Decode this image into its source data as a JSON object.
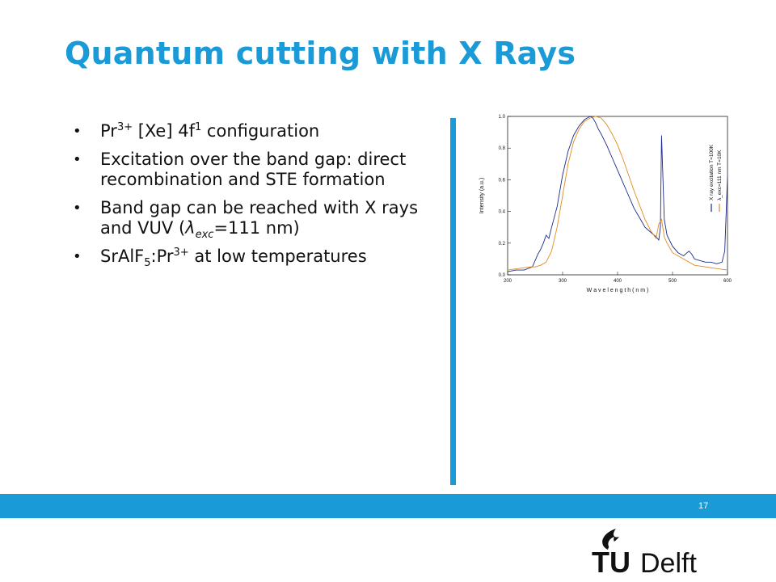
{
  "slide": {
    "title": "Quantum cutting with X Rays",
    "page_number": "17",
    "bullets": [
      {
        "pre": "Pr",
        "sup": "3+",
        "mid": " [Xe] 4f",
        "sup2": "1",
        "post": " configuration"
      },
      {
        "text": "Excitation over the band gap: direct recombination and STE formation"
      },
      {
        "pre": "Band gap can be reached with X rays and VUV (",
        "lambda": "λ",
        "sub": "exc",
        "post": "=111 nm)"
      },
      {
        "pre": "SrAlF",
        "sub": "5",
        "mid": ":Pr",
        "sup": "3+",
        "post": " at low temperatures"
      }
    ],
    "logo": {
      "tu": "TU",
      "delft": "Delft",
      "accent": "#1a9ad6"
    }
  },
  "chart_data": {
    "type": "line",
    "xlabel": "W a v e l e n g t h  ( n m )",
    "ylabel": "Intensity (a.u.)",
    "xlim": [
      200,
      600
    ],
    "ylim": [
      0,
      1.0
    ],
    "xticks": [
      200,
      300,
      400,
      500,
      600
    ],
    "yticks": [
      "0.0",
      "0.2",
      "0.4",
      "0.6",
      "0.8",
      "1.0"
    ],
    "legend_placement": "right-vertical",
    "series": [
      {
        "name": "X ray excitation T=100K",
        "color": "#1c2a8c",
        "x": [
          200,
          215,
          230,
          245,
          250,
          255,
          260,
          265,
          270,
          275,
          280,
          290,
          300,
          310,
          320,
          330,
          340,
          350,
          355,
          360,
          365,
          370,
          380,
          390,
          400,
          410,
          420,
          430,
          440,
          450,
          460,
          470,
          475,
          478,
          480,
          485,
          490,
          500,
          510,
          520,
          530,
          535,
          540,
          550,
          560,
          570,
          580,
          590,
          595,
          600
        ],
        "y": [
          0.02,
          0.03,
          0.03,
          0.05,
          0.09,
          0.13,
          0.16,
          0.2,
          0.25,
          0.23,
          0.3,
          0.43,
          0.63,
          0.78,
          0.88,
          0.94,
          0.98,
          1.0,
          0.99,
          0.96,
          0.92,
          0.89,
          0.82,
          0.74,
          0.66,
          0.58,
          0.5,
          0.42,
          0.36,
          0.3,
          0.27,
          0.24,
          0.22,
          0.3,
          0.88,
          0.35,
          0.25,
          0.18,
          0.14,
          0.12,
          0.15,
          0.13,
          0.1,
          0.09,
          0.08,
          0.08,
          0.07,
          0.08,
          0.15,
          0.62
        ]
      },
      {
        "name": "λ_exc=111 nm T=10K",
        "color": "#e08a1e",
        "x": [
          200,
          220,
          240,
          250,
          260,
          270,
          280,
          290,
          300,
          310,
          320,
          330,
          340,
          350,
          360,
          370,
          380,
          390,
          400,
          410,
          420,
          430,
          440,
          450,
          460,
          470,
          475,
          480,
          485,
          490,
          500,
          520,
          540,
          560,
          580,
          600
        ],
        "y": [
          0.03,
          0.04,
          0.05,
          0.05,
          0.06,
          0.08,
          0.15,
          0.3,
          0.5,
          0.7,
          0.84,
          0.92,
          0.97,
          0.99,
          1.0,
          0.99,
          0.95,
          0.89,
          0.82,
          0.73,
          0.63,
          0.53,
          0.44,
          0.35,
          0.28,
          0.23,
          0.32,
          0.35,
          0.24,
          0.2,
          0.14,
          0.1,
          0.06,
          0.05,
          0.04,
          0.03
        ]
      }
    ]
  }
}
